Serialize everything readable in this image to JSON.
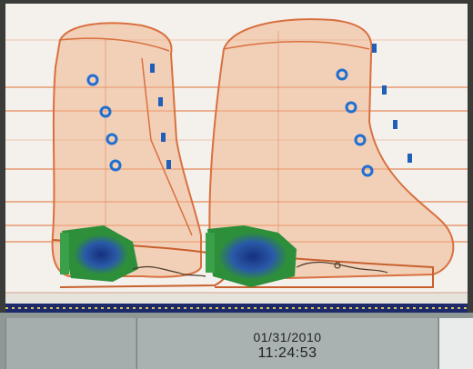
{
  "app": {
    "panel_colors": {
      "background": "#f4f1ec",
      "organic_material": "#e8875a",
      "inorganic_material": "#2e8f3a",
      "dense_material": "#1f3f9a",
      "status_strip": "#1c2a6b"
    }
  },
  "scan": {
    "objects": [
      "left-boot",
      "right-boot"
    ],
    "icons": [
      "eyelet-icon",
      "hook-icon",
      "heel-insert-icon"
    ]
  },
  "status_bar": {
    "date": "01/31/2010",
    "time": "11:24:53"
  }
}
